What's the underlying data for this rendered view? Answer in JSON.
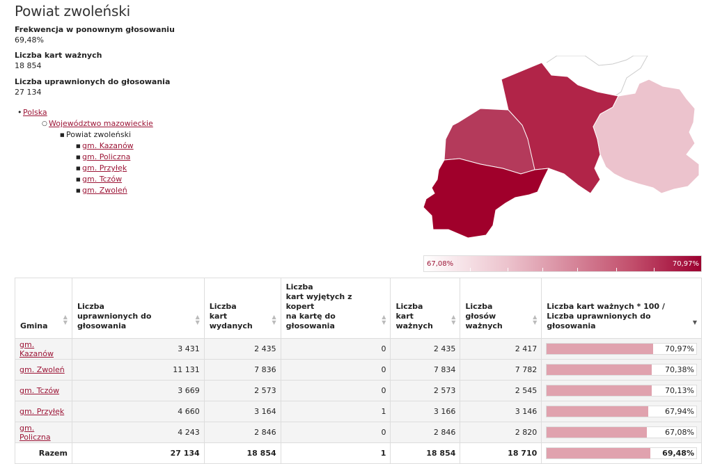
{
  "page": {
    "title": "Powiat zwoleński"
  },
  "stats": [
    {
      "label": "Frekwencja w ponownym głosowaniu",
      "value": "69,48%"
    },
    {
      "label": "Liczba kart ważnych",
      "value": "18 854"
    },
    {
      "label": "Liczba uprawnionych do głosowania",
      "value": "27 134"
    }
  ],
  "breadcrumbs": {
    "country": "Polska",
    "voivodeship": "Województwo mazowieckie",
    "county": "Powiat zwoleński",
    "gminas": [
      "gm. Kazanów",
      "gm. Policzna",
      "gm. Przyłęk",
      "gm. Tczów",
      "gm. Zwoleń"
    ]
  },
  "legend": {
    "min": "67,08%",
    "max": "70,97%"
  },
  "colors": {
    "accent": "#9c1536",
    "bar": "#e0a2ae"
  },
  "table": {
    "headers": [
      [
        "Gmina"
      ],
      [
        "Liczba",
        "uprawnionych do głosowania"
      ],
      [
        "Liczba",
        "kart wydanych"
      ],
      [
        "Liczba",
        "kart wyjętych z kopert",
        "na kartę do głosowania"
      ],
      [
        "Liczba",
        "kart ważnych"
      ],
      [
        "Liczba",
        "głosów ważnych"
      ],
      [
        "Liczba kart ważnych * 100 /",
        "Liczba uprawnionych do głosowania"
      ]
    ],
    "rows": [
      {
        "name": "gm. Kazanów",
        "uprawnionych": "3 431",
        "wydanych": "2 435",
        "wyjetych": "0",
        "waznych": "2 435",
        "glosow": "2 417",
        "frekwencja": "70,97%",
        "pct": 70.97
      },
      {
        "name": "gm. Zwoleń",
        "uprawnionych": "11 131",
        "wydanych": "7 836",
        "wyjetych": "0",
        "waznych": "7 834",
        "glosow": "7 782",
        "frekwencja": "70,38%",
        "pct": 70.38
      },
      {
        "name": "gm. Tczów",
        "uprawnionych": "3 669",
        "wydanych": "2 573",
        "wyjetych": "0",
        "waznych": "2 573",
        "glosow": "2 545",
        "frekwencja": "70,13%",
        "pct": 70.13
      },
      {
        "name": "gm. Przyłęk",
        "uprawnionych": "4 660",
        "wydanych": "3 164",
        "wyjetych": "1",
        "waznych": "3 166",
        "glosow": "3 146",
        "frekwencja": "67,94%",
        "pct": 67.94
      },
      {
        "name": "gm. Policzna",
        "uprawnionych": "4 243",
        "wydanych": "2 846",
        "wyjetych": "0",
        "waznych": "2 846",
        "glosow": "2 820",
        "frekwencja": "67,08%",
        "pct": 67.08
      }
    ],
    "total": {
      "name": "Razem",
      "uprawnionych": "27 134",
      "wydanych": "18 854",
      "wyjetych": "1",
      "waznych": "18 854",
      "glosow": "18 710",
      "frekwencja": "69,48%",
      "pct": 69.48
    }
  }
}
